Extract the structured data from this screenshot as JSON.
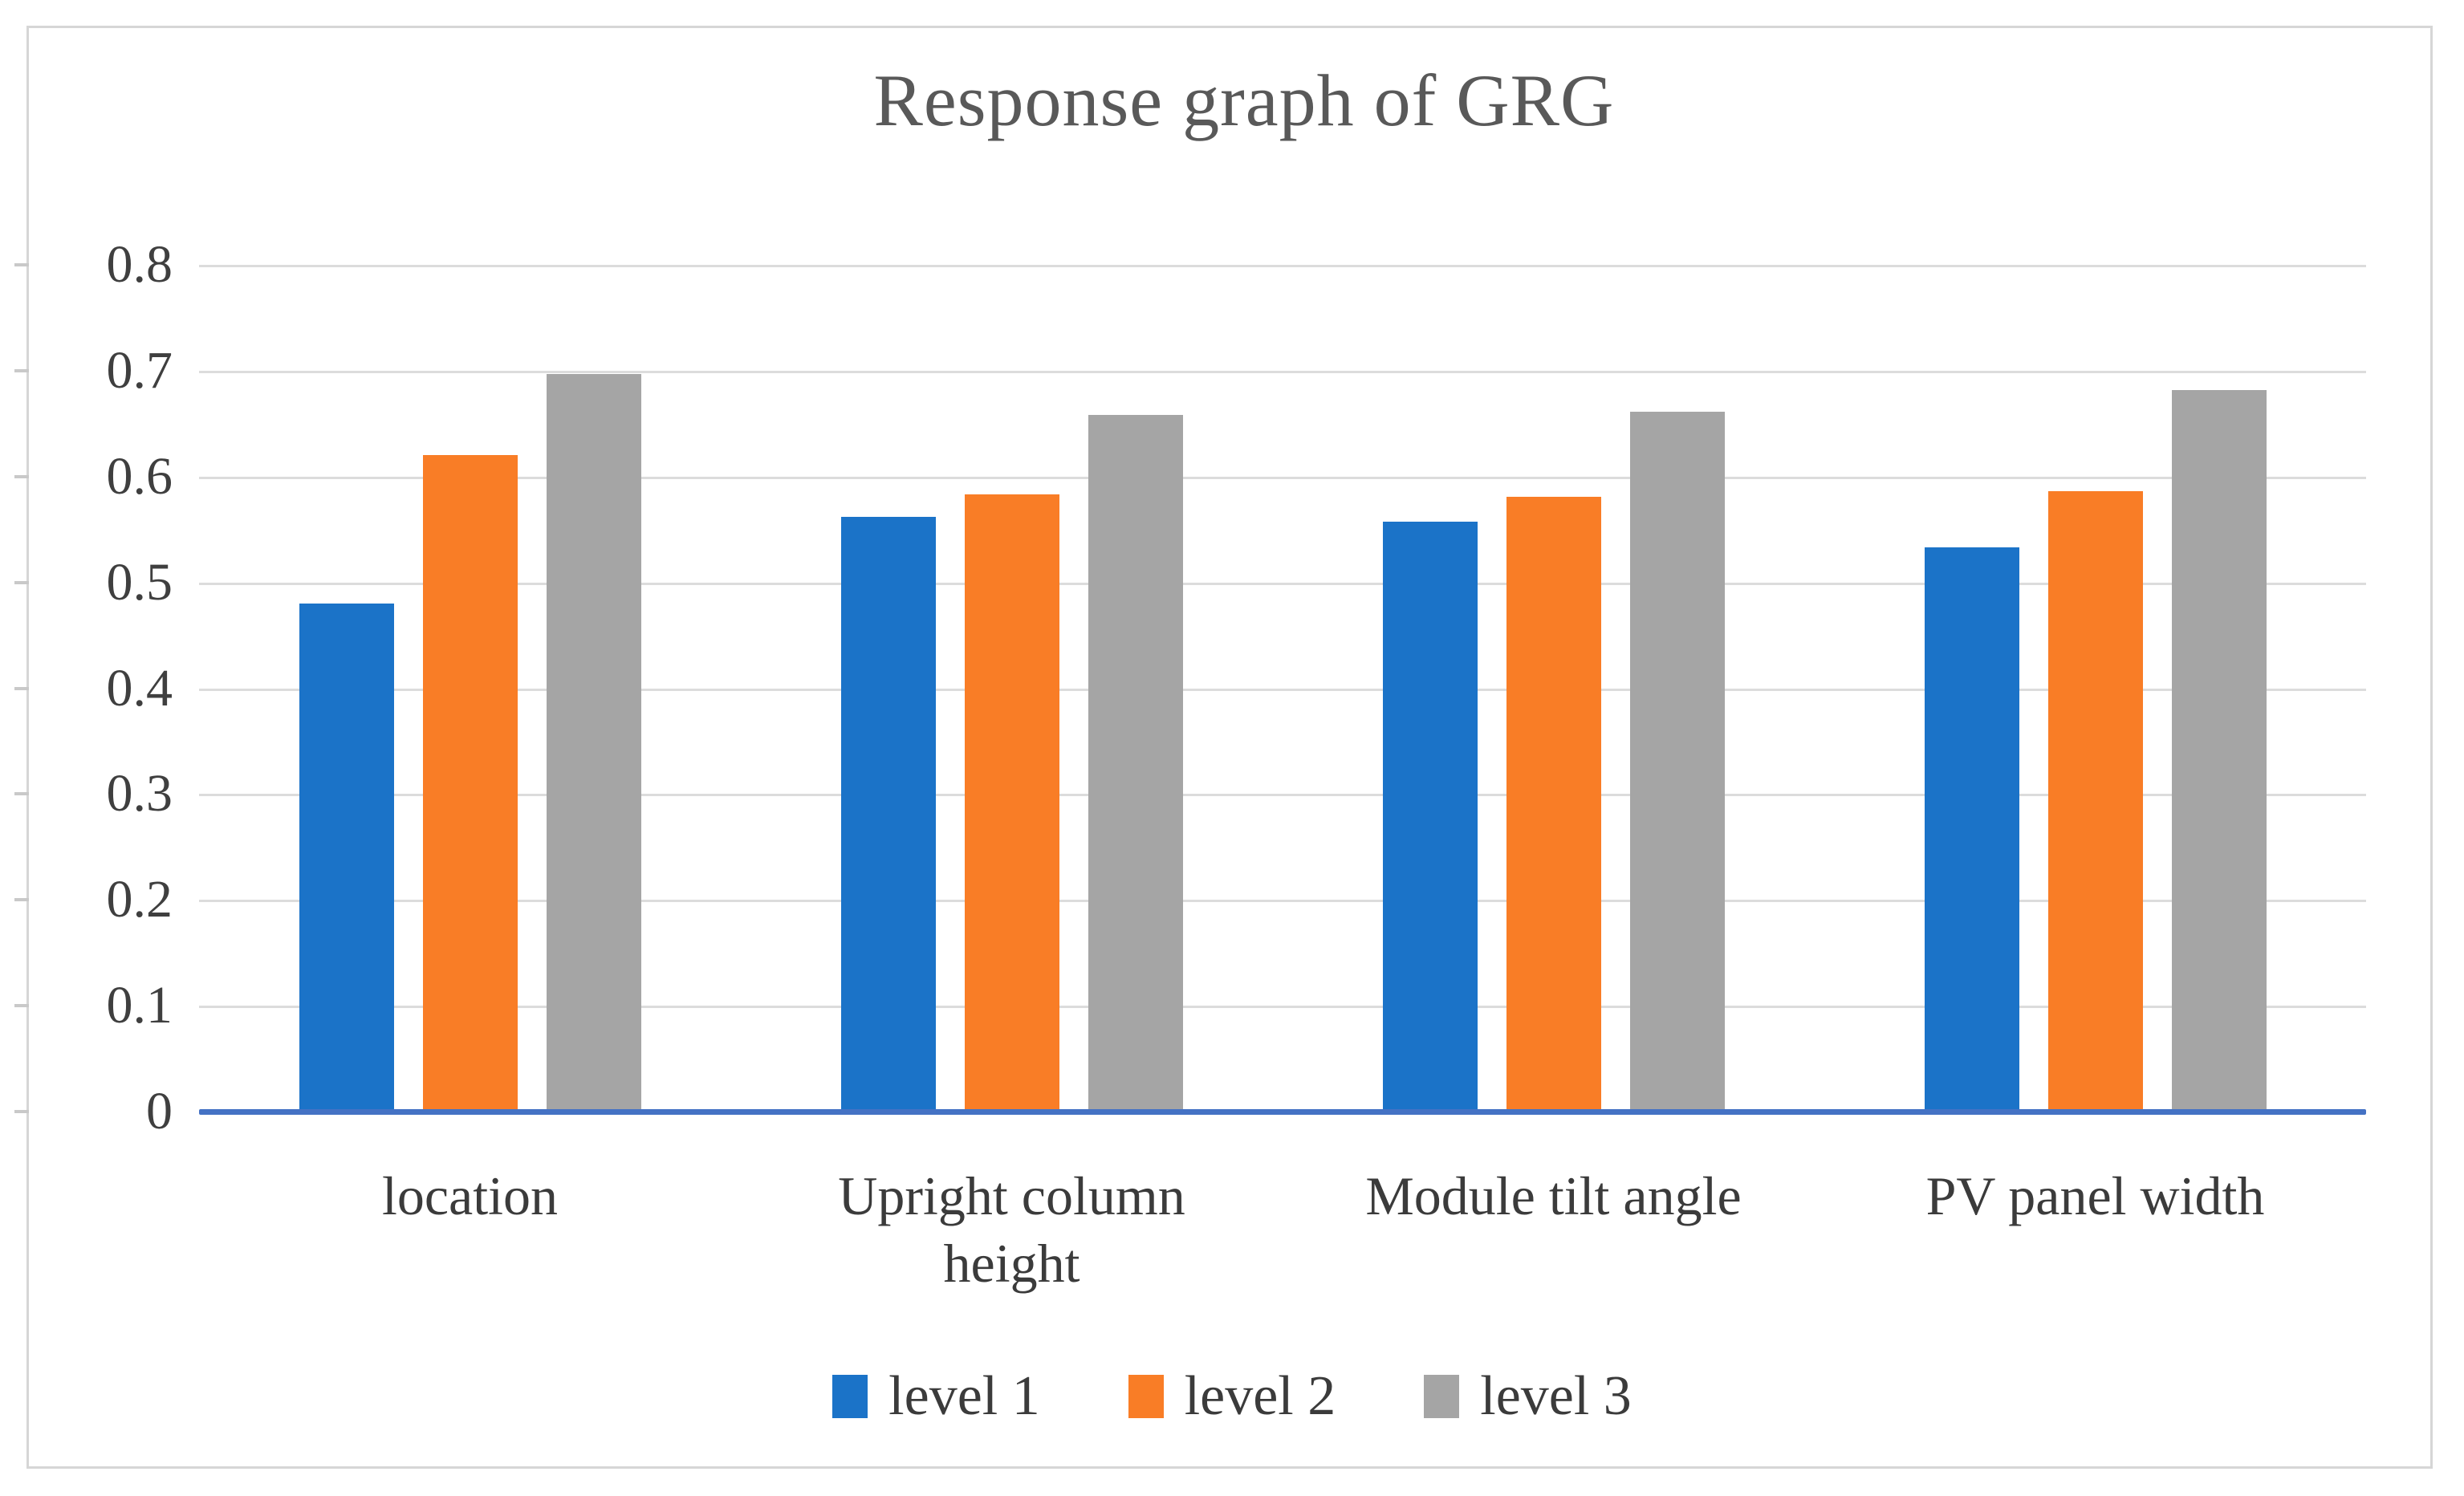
{
  "chart_data": {
    "type": "bar",
    "title": "Response graph of GRG",
    "categories": [
      "location",
      "Upright column height",
      "Module tilt angle",
      "PV panel width"
    ],
    "series": [
      {
        "name": "level 1",
        "color": "#1b73c8",
        "values": [
          0.48,
          0.562,
          0.557,
          0.533
        ]
      },
      {
        "name": "level 2",
        "color": "#f97d26",
        "values": [
          0.62,
          0.583,
          0.581,
          0.586
        ]
      },
      {
        "name": "level 3",
        "color": "#a5a5a5",
        "values": [
          0.697,
          0.658,
          0.661,
          0.682
        ]
      }
    ],
    "xlabel": "",
    "ylabel": "",
    "ylim": [
      0,
      0.8
    ],
    "yticks": [
      {
        "label": "0",
        "value": 0.0
      },
      {
        "label": "0.1",
        "value": 0.1
      },
      {
        "label": "0.2",
        "value": 0.2
      },
      {
        "label": "0.3",
        "value": 0.3
      },
      {
        "label": "0.4",
        "value": 0.4
      },
      {
        "label": "0.5",
        "value": 0.5
      },
      {
        "label": "0.6",
        "value": 0.6
      },
      {
        "label": "0.7",
        "value": 0.7
      },
      {
        "label": "0.8",
        "value": 0.8
      }
    ],
    "grid": "horizontal",
    "legend_position": "bottom",
    "legend_entries": [
      "level 1",
      "level 2",
      "level 3"
    ],
    "colors": {
      "gridline": "#dcdcdc",
      "axis_line": "#4472c4",
      "title_text": "#595959",
      "label_text": "#3b3b3b",
      "frame_border": "#d6d6d6",
      "background": "#ffffff"
    }
  }
}
